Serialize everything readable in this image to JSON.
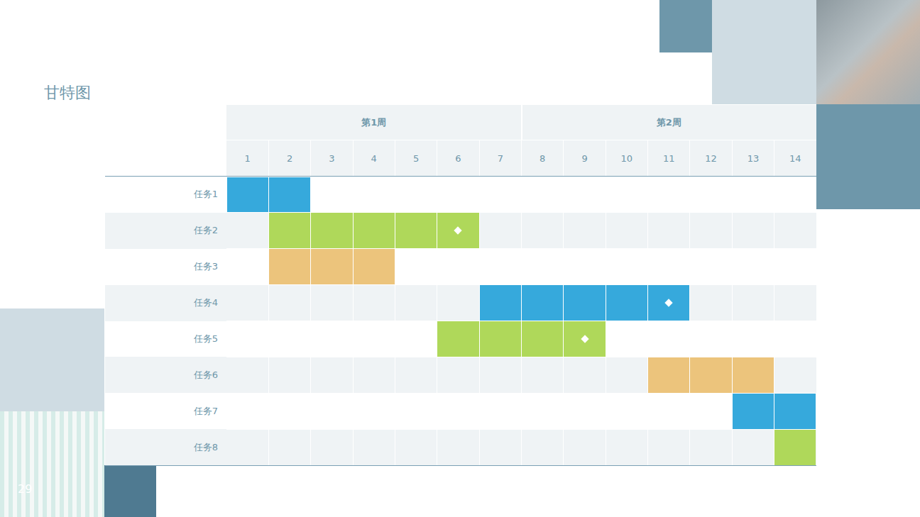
{
  "chart_data": {
    "type": "gantt",
    "title": "甘特图",
    "page_number": "29",
    "xlim": [
      0.5,
      14.5
    ],
    "xticks": [
      1,
      2,
      3,
      4,
      5,
      6,
      7,
      8,
      9,
      10,
      11,
      12,
      13,
      14
    ],
    "week_groups": [
      {
        "label": "第1周",
        "start": 1,
        "end": 7
      },
      {
        "label": "第2周",
        "start": 8,
        "end": 14
      }
    ],
    "tasks": [
      {
        "label": "任务1",
        "start": 1,
        "end": 2,
        "color": "#36a9dc",
        "milestone": null
      },
      {
        "label": "任务2",
        "start": 2,
        "end": 6,
        "color": "#afd85a",
        "milestone": 6
      },
      {
        "label": "任务3",
        "start": 2,
        "end": 4,
        "color": "#ecc47c",
        "milestone": null
      },
      {
        "label": "任务4",
        "start": 7,
        "end": 11,
        "color": "#36a9dc",
        "milestone": 11
      },
      {
        "label": "任务5",
        "start": 6,
        "end": 9,
        "color": "#afd85a",
        "milestone": 9
      },
      {
        "label": "任务6",
        "start": 11,
        "end": 13,
        "color": "#ecc47c",
        "milestone": null
      },
      {
        "label": "任务7",
        "start": 13,
        "end": 14,
        "color": "#36a9dc",
        "milestone": null
      },
      {
        "label": "任务8",
        "start": 14,
        "end": 14,
        "color": "#afd85a",
        "milestone": null
      }
    ]
  }
}
